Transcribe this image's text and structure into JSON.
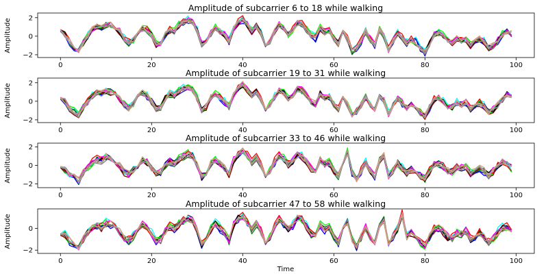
{
  "chart_data": [
    {
      "type": "line",
      "title": "Amplitude of subcarrier 6 to 18 while walking",
      "ylabel": "Amplitude",
      "xlabel": "",
      "xlim": [
        -5,
        104
      ],
      "ylim": [
        -2.3,
        2.5
      ],
      "xticks": [
        0,
        20,
        40,
        60,
        80,
        100
      ],
      "yticks": [
        -2,
        0,
        2
      ],
      "grid": false,
      "base_curve": [
        0.8,
        0.2,
        -0.6,
        -1.2,
        -1.5,
        -0.7,
        0.0,
        0.8,
        1.1,
        0.9,
        1.2,
        1.3,
        1.0,
        0.5,
        -0.3,
        -0.7,
        -0.4,
        0.3,
        0.8,
        0.7,
        0.1,
        -0.9,
        -0.8,
        0.2,
        0.7,
        0.5,
        1.2,
        1.5,
        1.7,
        1.5,
        0.6,
        -0.9,
        -0.7,
        0.3,
        0.9,
        0.5,
        0.2,
        -0.5,
        0.8,
        1.5,
        1.8,
        1.2,
        0.5,
        1.1,
        0.3,
        -0.8,
        -0.5,
        0.6,
        1.2,
        0.8,
        0.2,
        0.7,
        1.4,
        1.3,
        0.7,
        0.1,
        -0.2,
        0.9,
        0.4,
        0.6,
        -0.2,
        -0.8,
        0.8,
        -0.3,
        -1.6,
        -1.3,
        -0.5,
        0.6,
        -0.3,
        -1.0,
        0.7,
        0.1,
        -1.5,
        -0.6,
        0.3,
        -0.2,
        -0.8,
        -0.4,
        -0.6,
        -1.3,
        -1.7,
        -0.8,
        0.2,
        0.4,
        0.1,
        -0.5,
        -0.7,
        -0.2,
        -0.5,
        -0.3,
        -1.0,
        -0.6,
        -0.3,
        -0.6,
        -1.3,
        -1.0,
        -0.5,
        0.2,
        0.5,
        0.3
      ],
      "series": [
        {
          "color": "#000080",
          "offset": 0.0,
          "noise_seed": 11,
          "noise_amp": 0.35
        },
        {
          "color": "#0000ff",
          "offset": -0.1,
          "noise_seed": 12,
          "noise_amp": 0.35
        },
        {
          "color": "#00ffff",
          "offset": 0.1,
          "noise_seed": 13,
          "noise_amp": 0.4
        },
        {
          "color": "#008000",
          "offset": -0.05,
          "noise_seed": 14,
          "noise_amp": 0.35
        },
        {
          "color": "#00ff00",
          "offset": 0.05,
          "noise_seed": 15,
          "noise_amp": 0.4
        },
        {
          "color": "#ff0000",
          "offset": 0.1,
          "noise_seed": 16,
          "noise_amp": 0.35
        },
        {
          "color": "#8b0000",
          "offset": -0.1,
          "noise_seed": 17,
          "noise_amp": 0.3
        },
        {
          "color": "#000000",
          "offset": 0.0,
          "noise_seed": 18,
          "noise_amp": 0.3
        },
        {
          "color": "#ff00ff",
          "offset": 0.05,
          "noise_seed": 19,
          "noise_amp": 0.35
        },
        {
          "color": "#808080",
          "offset": -0.05,
          "noise_seed": 20,
          "noise_amp": 0.3
        },
        {
          "color": "#bc8f8f",
          "offset": 0.0,
          "noise_seed": 21,
          "noise_amp": 0.3
        },
        {
          "color": "#d2a679",
          "offset": 0.05,
          "noise_seed": 22,
          "noise_amp": 0.3
        },
        {
          "color": "#a0a0a0",
          "offset": -0.05,
          "noise_seed": 23,
          "noise_amp": 0.25
        }
      ]
    },
    {
      "type": "line",
      "title": "Amplitude of subcarrier 19 to 31 while walking",
      "ylabel": "Amplitude",
      "xlabel": "",
      "xlim": [
        -5,
        104
      ],
      "ylim": [
        -2.3,
        2.5
      ],
      "xticks": [
        0,
        20,
        40,
        60,
        80,
        100
      ],
      "yticks": [
        -2,
        0,
        2
      ],
      "grid": false,
      "base_curve": [
        0.5,
        0.0,
        -0.8,
        -1.1,
        -1.4,
        -0.6,
        0.0,
        0.6,
        0.9,
        0.8,
        1.1,
        1.0,
        0.7,
        0.3,
        -0.4,
        -0.8,
        -0.3,
        0.4,
        0.9,
        0.6,
        0.0,
        -0.8,
        -0.7,
        0.3,
        0.8,
        0.6,
        1.1,
        1.4,
        1.5,
        1.3,
        0.4,
        -1.0,
        -0.6,
        0.4,
        0.8,
        0.4,
        0.0,
        -0.6,
        0.7,
        1.4,
        1.8,
        1.3,
        0.6,
        1.0,
        0.2,
        -0.7,
        -0.4,
        0.5,
        1.1,
        0.9,
        0.3,
        0.6,
        1.3,
        1.2,
        0.6,
        0.0,
        -0.3,
        0.8,
        0.3,
        0.5,
        -0.3,
        -0.9,
        0.7,
        -0.4,
        -1.5,
        -1.2,
        -0.4,
        0.5,
        -0.4,
        -1.0,
        0.6,
        0.0,
        -1.4,
        -0.5,
        0.3,
        -0.2,
        -0.7,
        -0.3,
        -0.5,
        -1.2,
        -1.6,
        -0.7,
        0.2,
        0.3,
        0.0,
        -0.6,
        -0.6,
        -0.1,
        -0.4,
        -0.2,
        -0.9,
        -0.5,
        -0.2,
        -0.5,
        -1.2,
        -0.9,
        -0.4,
        0.2,
        0.8,
        0.5
      ],
      "series": [
        {
          "color": "#000080",
          "offset": 0.0,
          "noise_seed": 31,
          "noise_amp": 0.35
        },
        {
          "color": "#0000ff",
          "offset": -0.1,
          "noise_seed": 32,
          "noise_amp": 0.35
        },
        {
          "color": "#00ffff",
          "offset": 0.1,
          "noise_seed": 33,
          "noise_amp": 0.4
        },
        {
          "color": "#008000",
          "offset": -0.05,
          "noise_seed": 34,
          "noise_amp": 0.35
        },
        {
          "color": "#00ff00",
          "offset": 0.05,
          "noise_seed": 35,
          "noise_amp": 0.4
        },
        {
          "color": "#ff0000",
          "offset": 0.1,
          "noise_seed": 36,
          "noise_amp": 0.35
        },
        {
          "color": "#8b0000",
          "offset": -0.1,
          "noise_seed": 37,
          "noise_amp": 0.3
        },
        {
          "color": "#000000",
          "offset": 0.0,
          "noise_seed": 38,
          "noise_amp": 0.3
        },
        {
          "color": "#ff00ff",
          "offset": 0.05,
          "noise_seed": 39,
          "noise_amp": 0.35
        },
        {
          "color": "#808080",
          "offset": -0.05,
          "noise_seed": 40,
          "noise_amp": 0.3
        },
        {
          "color": "#bc8f8f",
          "offset": 0.0,
          "noise_seed": 41,
          "noise_amp": 0.3
        },
        {
          "color": "#d2a679",
          "offset": 0.05,
          "noise_seed": 42,
          "noise_amp": 0.3
        },
        {
          "color": "#a0a0a0",
          "offset": -0.05,
          "noise_seed": 43,
          "noise_amp": 0.25
        }
      ]
    },
    {
      "type": "line",
      "title": "Amplitude of subcarrier 33 to 46 while walking",
      "ylabel": "Amplitude",
      "xlabel": "",
      "xlim": [
        -5,
        104
      ],
      "ylim": [
        -2.4,
        2.4
      ],
      "xticks": [
        0,
        20,
        40,
        60,
        80,
        100
      ],
      "yticks": [
        -2,
        0,
        2
      ],
      "grid": false,
      "base_curve": [
        0.0,
        -0.5,
        -1.0,
        -1.3,
        -1.6,
        -0.8,
        -0.2,
        0.3,
        0.6,
        0.5,
        0.9,
        0.8,
        0.4,
        0.0,
        -0.7,
        -0.9,
        -0.5,
        0.1,
        0.6,
        0.3,
        -0.3,
        -0.9,
        -0.8,
        0.0,
        0.4,
        0.2,
        0.7,
        1.0,
        1.2,
        1.0,
        0.1,
        -1.2,
        -0.8,
        0.2,
        0.6,
        0.2,
        -0.2,
        -0.9,
        0.5,
        1.2,
        1.6,
        1.1,
        0.3,
        0.8,
        0.0,
        -0.9,
        -0.6,
        0.4,
        1.0,
        0.7,
        0.1,
        0.5,
        1.1,
        1.0,
        0.4,
        -0.3,
        -0.6,
        0.6,
        0.1,
        0.3,
        -0.5,
        -1.1,
        0.5,
        1.4,
        -0.8,
        -1.5,
        -0.6,
        0.3,
        -0.6,
        -1.1,
        0.5,
        1.1,
        -1.2,
        -0.6,
        0.2,
        -0.3,
        -0.8,
        -0.4,
        -0.6,
        -1.1,
        -1.4,
        -0.6,
        0.1,
        0.2,
        -0.1,
        -0.6,
        -0.7,
        -0.2,
        -0.3,
        -0.1,
        -0.8,
        -0.5,
        -0.3,
        -0.6,
        -1.1,
        -0.6,
        0.0,
        0.4,
        0.2,
        -0.3
      ],
      "series": [
        {
          "color": "#000080",
          "offset": 0.0,
          "noise_seed": 51,
          "noise_amp": 0.4
        },
        {
          "color": "#0000ff",
          "offset": -0.1,
          "noise_seed": 52,
          "noise_amp": 0.4
        },
        {
          "color": "#00ffff",
          "offset": 0.1,
          "noise_seed": 53,
          "noise_amp": 0.45
        },
        {
          "color": "#008000",
          "offset": -0.05,
          "noise_seed": 54,
          "noise_amp": 0.4
        },
        {
          "color": "#00ff00",
          "offset": 0.05,
          "noise_seed": 55,
          "noise_amp": 0.45
        },
        {
          "color": "#ff0000",
          "offset": 0.1,
          "noise_seed": 56,
          "noise_amp": 0.4
        },
        {
          "color": "#8b0000",
          "offset": -0.1,
          "noise_seed": 57,
          "noise_amp": 0.35
        },
        {
          "color": "#000000",
          "offset": 0.0,
          "noise_seed": 58,
          "noise_amp": 0.35
        },
        {
          "color": "#ff00ff",
          "offset": 0.05,
          "noise_seed": 59,
          "noise_amp": 0.4
        },
        {
          "color": "#808080",
          "offset": -0.05,
          "noise_seed": 60,
          "noise_amp": 0.35
        },
        {
          "color": "#bc8f8f",
          "offset": 0.0,
          "noise_seed": 61,
          "noise_amp": 0.35
        },
        {
          "color": "#d2a679",
          "offset": 0.05,
          "noise_seed": 62,
          "noise_amp": 0.35
        },
        {
          "color": "#a0a0a0",
          "offset": -0.05,
          "noise_seed": 63,
          "noise_amp": 0.3
        }
      ]
    },
    {
      "type": "line",
      "title": "Amplitude of subcarrier 47 to 58 while walking",
      "ylabel": "Amplitude",
      "xlabel": "Time",
      "xlim": [
        -5,
        104
      ],
      "ylim": [
        -2.3,
        1.8
      ],
      "xticks": [
        0,
        20,
        40,
        60,
        80,
        100
      ],
      "yticks": [
        -2,
        0
      ],
      "grid": false,
      "base_curve": [
        -0.4,
        -0.6,
        -1.2,
        -1.5,
        -1.7,
        -1.0,
        -0.4,
        0.1,
        0.3,
        0.1,
        0.5,
        0.4,
        0.0,
        -0.3,
        -0.9,
        -1.1,
        -0.7,
        -0.1,
        0.3,
        0.1,
        -0.5,
        -1.1,
        -1.0,
        -0.3,
        0.2,
        0.0,
        0.4,
        0.7,
        0.9,
        0.7,
        -0.2,
        -1.5,
        -1.0,
        0.0,
        0.4,
        0.0,
        -0.4,
        -1.1,
        0.3,
        0.9,
        1.1,
        0.6,
        -0.1,
        0.5,
        -0.3,
        -1.1,
        -0.8,
        0.2,
        0.8,
        0.5,
        -0.1,
        0.3,
        0.9,
        0.8,
        0.2,
        -0.5,
        -0.8,
        0.4,
        -0.1,
        0.1,
        -0.7,
        -1.3,
        0.3,
        0.6,
        -1.0,
        -1.7,
        -0.8,
        0.1,
        -0.8,
        -1.3,
        0.3,
        0.8,
        -1.4,
        -0.8,
        0.0,
        1.3,
        -0.8,
        -0.4,
        -0.8,
        -1.3,
        -1.6,
        -0.8,
        -0.1,
        0.0,
        -0.3,
        -0.8,
        -0.9,
        -0.4,
        -0.5,
        -0.3,
        -1.0,
        -0.7,
        -0.4,
        -0.8,
        -1.3,
        -0.9,
        -0.4,
        0.0,
        0.1,
        -0.2
      ],
      "series": [
        {
          "color": "#000080",
          "offset": 0.0,
          "noise_seed": 71,
          "noise_amp": 0.35
        },
        {
          "color": "#0000ff",
          "offset": -0.1,
          "noise_seed": 72,
          "noise_amp": 0.35
        },
        {
          "color": "#00ffff",
          "offset": 0.1,
          "noise_seed": 73,
          "noise_amp": 0.4
        },
        {
          "color": "#008000",
          "offset": -0.05,
          "noise_seed": 74,
          "noise_amp": 0.35
        },
        {
          "color": "#00ff00",
          "offset": 0.05,
          "noise_seed": 75,
          "noise_amp": 0.4
        },
        {
          "color": "#ff0000",
          "offset": 0.1,
          "noise_seed": 76,
          "noise_amp": 0.35
        },
        {
          "color": "#8b0000",
          "offset": -0.1,
          "noise_seed": 77,
          "noise_amp": 0.3
        },
        {
          "color": "#000000",
          "offset": 0.0,
          "noise_seed": 78,
          "noise_amp": 0.3
        },
        {
          "color": "#ff00ff",
          "offset": 0.05,
          "noise_seed": 79,
          "noise_amp": 0.35
        },
        {
          "color": "#808080",
          "offset": -0.05,
          "noise_seed": 80,
          "noise_amp": 0.3
        },
        {
          "color": "#bc8f8f",
          "offset": 0.0,
          "noise_seed": 81,
          "noise_amp": 0.3
        },
        {
          "color": "#d2a679",
          "offset": 0.05,
          "noise_seed": 82,
          "noise_amp": 0.3
        }
      ]
    }
  ]
}
